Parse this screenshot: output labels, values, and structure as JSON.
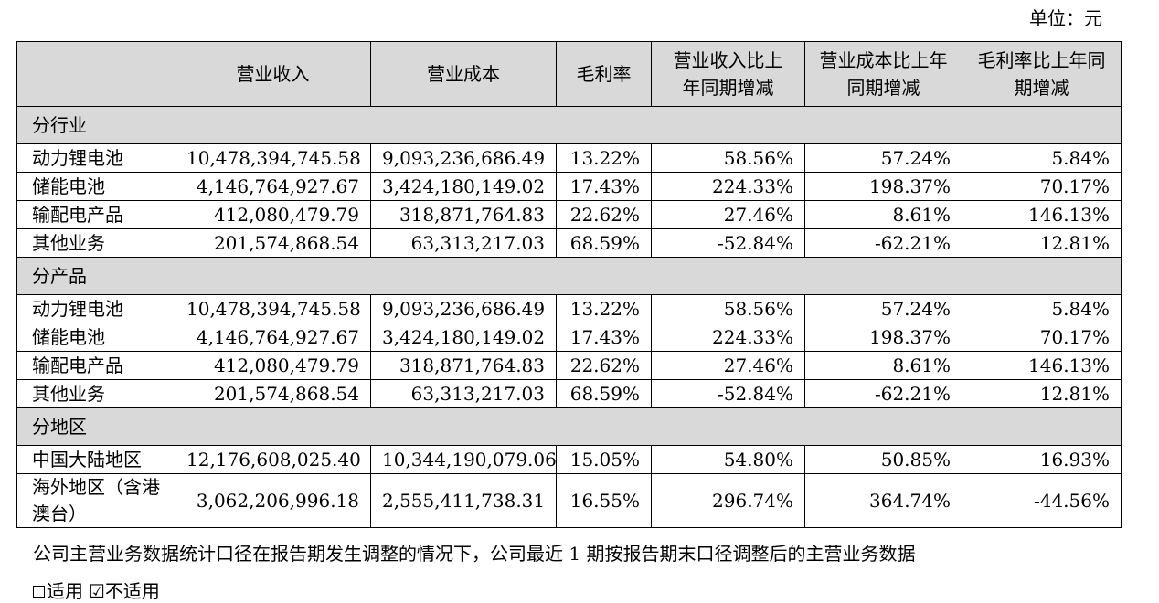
{
  "unit": "单位：元",
  "headers": [
    "",
    "营业收入",
    "营业成本",
    "毛利率",
    "营业收入比上年同期增减",
    "营业成本比上年同期增减",
    "毛利率比上年同期增减"
  ],
  "sections": [
    {
      "title": "分行业",
      "rows": [
        [
          "动力锂电池",
          "10,478,394,745.58",
          "9,093,236,686.49",
          "13.22%",
          "58.56%",
          "57.24%",
          "5.84%"
        ],
        [
          "储能电池",
          "4,146,764,927.67",
          "3,424,180,149.02",
          "17.43%",
          "224.33%",
          "198.37%",
          "70.17%"
        ],
        [
          "输配电产品",
          "412,080,479.79",
          "318,871,764.83",
          "22.62%",
          "27.46%",
          "8.61%",
          "146.13%"
        ],
        [
          "其他业务",
          "201,574,868.54",
          "63,313,217.03",
          "68.59%",
          "-52.84%",
          "-62.21%",
          "12.81%"
        ]
      ]
    },
    {
      "title": "分产品",
      "rows": [
        [
          "动力锂电池",
          "10,478,394,745.58",
          "9,093,236,686.49",
          "13.22%",
          "58.56%",
          "57.24%",
          "5.84%"
        ],
        [
          "储能电池",
          "4,146,764,927.67",
          "3,424,180,149.02",
          "17.43%",
          "224.33%",
          "198.37%",
          "70.17%"
        ],
        [
          "输配电产品",
          "412,080,479.79",
          "318,871,764.83",
          "22.62%",
          "27.46%",
          "8.61%",
          "146.13%"
        ],
        [
          "其他业务",
          "201,574,868.54",
          "63,313,217.03",
          "68.59%",
          "-52.84%",
          "-62.21%",
          "12.81%"
        ]
      ]
    },
    {
      "title": "分地区",
      "rows": [
        [
          "中国大陆地区",
          "12,176,608,025.40",
          "10,344,190,079.06",
          "15.05%",
          "54.80%",
          "50.85%",
          "16.93%"
        ],
        [
          "海外地区（含港澳台）",
          "3,062,206,996.18",
          "2,555,411,738.31",
          "16.55%",
          "296.74%",
          "364.74%",
          "-44.56%"
        ]
      ]
    }
  ],
  "note": "公司主营业务数据统计口径在报告期发生调整的情况下，公司最近 1 期按报告期末口径调整后的主营业务数据",
  "options": {
    "applicable_label": "适用",
    "not_applicable_label": "不适用",
    "not_applicable_mark": "☑"
  }
}
